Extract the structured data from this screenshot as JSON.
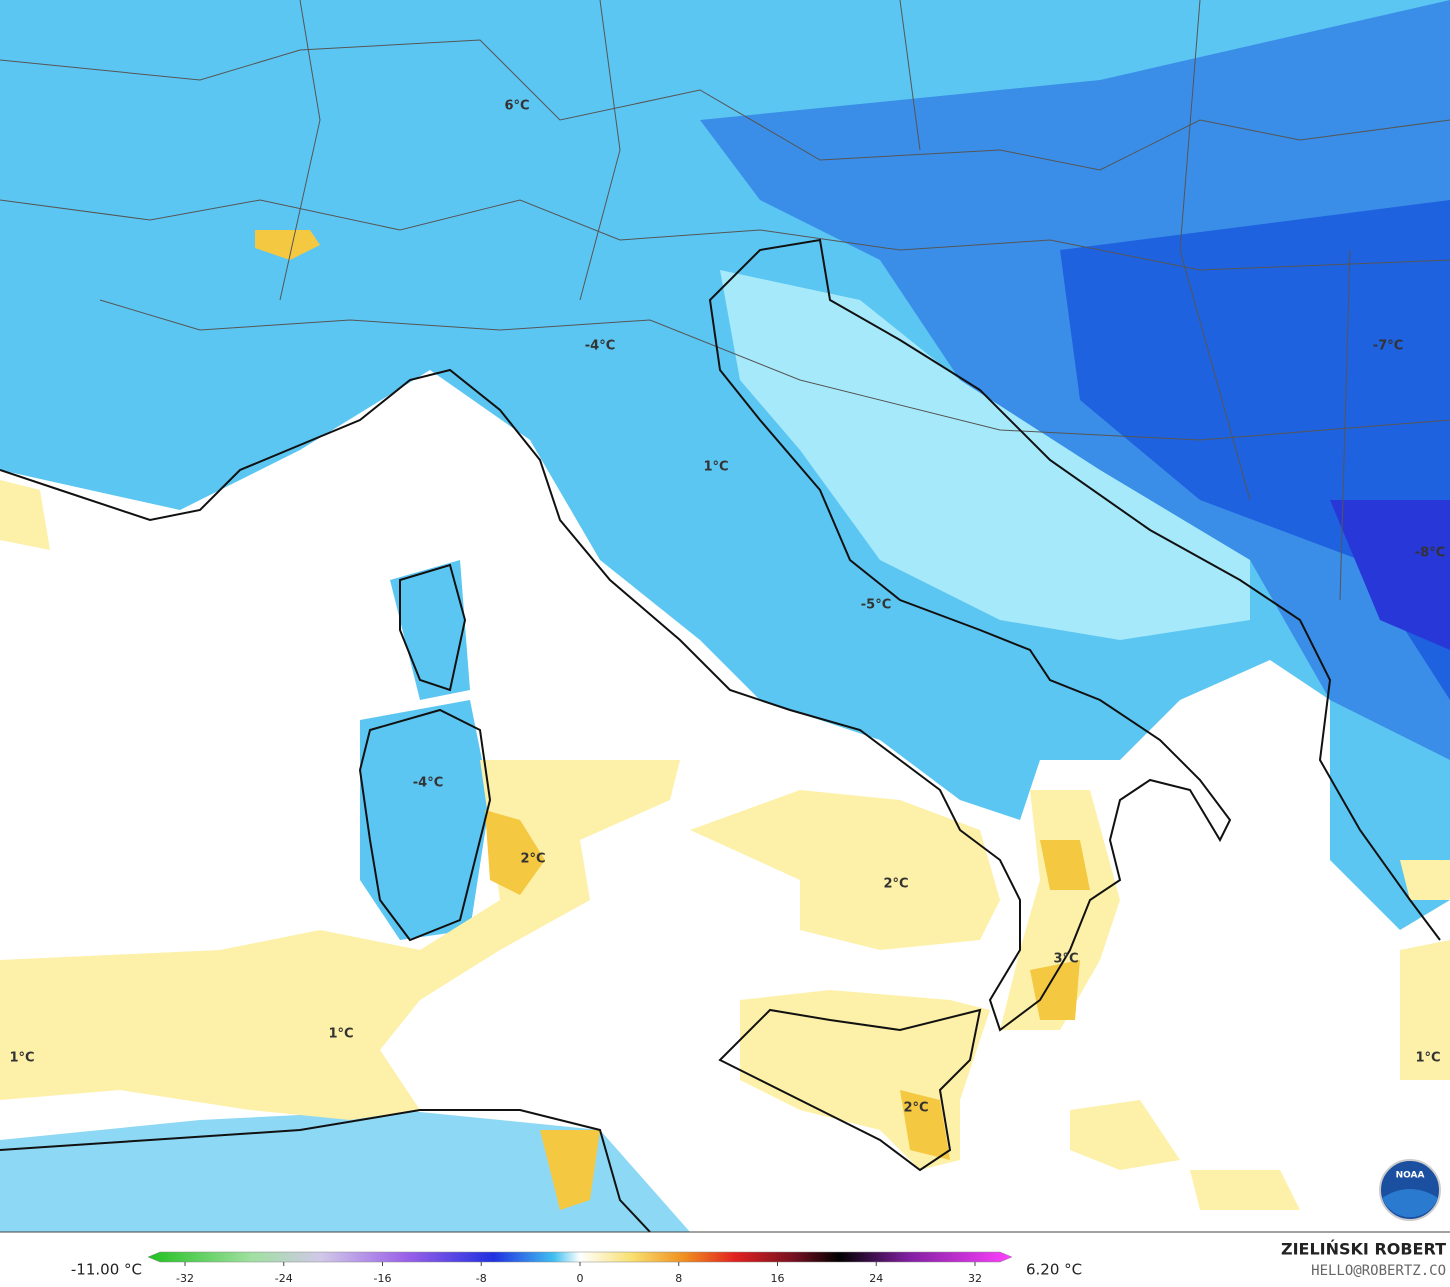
{
  "map_labels": [
    "6°C",
    "-4°C",
    "-7°C",
    "1°C",
    "-8°C",
    "-5°C",
    "-4°C",
    "2°C",
    "2°C",
    "3°C",
    "1°C",
    "1°C",
    "1°C",
    "2°C"
  ],
  "colorbar": {
    "min_label": "-11.00 °C",
    "max_label": "6.20 °C",
    "ticks": [
      -32,
      -24,
      -16,
      -8,
      0,
      8,
      16,
      24,
      32
    ]
  },
  "credit": {
    "author": "ZIELIŃSKI ROBERT",
    "contact": "HELLO@ROBERTZ.CO",
    "logo": "NOAA"
  }
}
